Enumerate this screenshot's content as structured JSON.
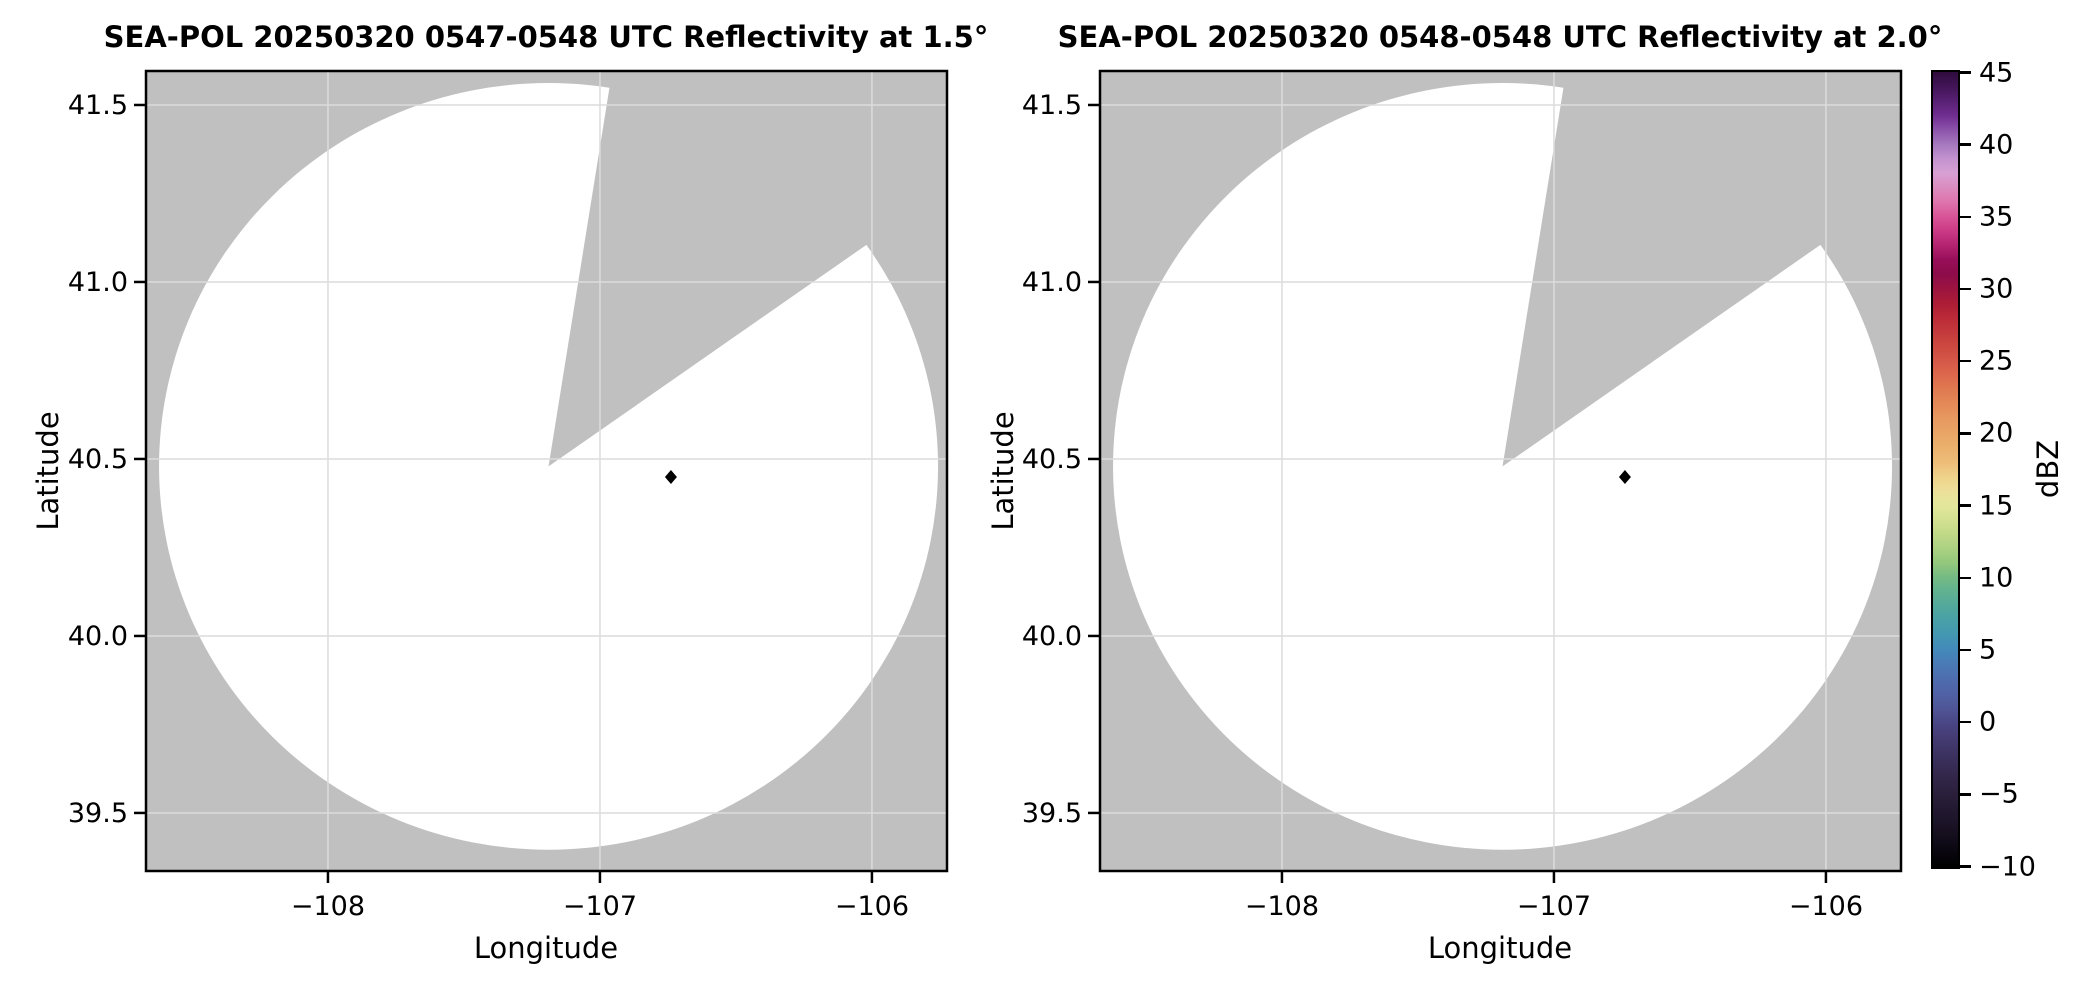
{
  "figure": {
    "background": "#ffffff",
    "kind": "dual-panel radar PPI reflectivity figure"
  },
  "chart_data": {
    "type": "heatmap",
    "plots": [
      {
        "title": "SEA-POL 20250320 0547-0548 UTC Reflectivity at 1.5°",
        "xlabel": "Longitude",
        "ylabel": "Latitude",
        "xlim": [
          -108.669,
          -105.724
        ],
        "ylim": [
          39.336,
          41.596
        ],
        "xticks": [
          -108,
          -107,
          -106
        ],
        "xtick_labels": [
          "−108",
          "−107",
          "−106"
        ],
        "yticks": [
          41.5,
          41.0,
          40.5,
          40.0,
          39.5
        ],
        "ytick_labels": [
          "41.5",
          "41.0",
          "40.5",
          "40.0",
          "39.5"
        ],
        "grid": true,
        "radar": {
          "center_lon": -107.189,
          "center_lat": 40.479,
          "radius_lon_deg": 1.432,
          "radius_lat_deg": 1.083,
          "missing_sector_azimuth_deg": [
            9.0,
            54.7
          ]
        },
        "marker": {
          "lon": -106.739,
          "lat": 40.449,
          "shape": "diamond",
          "color": "#000000"
        },
        "colors": {
          "no_data": "#c0c0c0",
          "scanned_clear": "#ffffff",
          "grid": "#dcdcdc",
          "frame": "#000000"
        }
      },
      {
        "title": "SEA-POL 20250320 0548-0548 UTC Reflectivity at 2.0°",
        "xlabel": "Longitude",
        "ylabel": "Latitude",
        "xlim": [
          -108.669,
          -105.724
        ],
        "ylim": [
          39.336,
          41.596
        ],
        "xticks": [
          -108,
          -107,
          -106
        ],
        "xtick_labels": [
          "−108",
          "−107",
          "−106"
        ],
        "yticks": [
          41.5,
          41.0,
          40.5,
          40.0,
          39.5
        ],
        "ytick_labels": [
          "41.5",
          "41.0",
          "40.5",
          "40.0",
          "39.5"
        ],
        "grid": true,
        "radar": {
          "center_lon": -107.189,
          "center_lat": 40.479,
          "radius_lon_deg": 1.432,
          "radius_lat_deg": 1.083,
          "missing_sector_azimuth_deg": [
            9.0,
            54.7
          ]
        },
        "marker": {
          "lon": -106.739,
          "lat": 40.449,
          "shape": "diamond",
          "color": "#000000"
        },
        "colors": {
          "no_data": "#c0c0c0",
          "scanned_clear": "#ffffff",
          "grid": "#dcdcdc",
          "frame": "#000000"
        }
      }
    ],
    "colorbar": {
      "label": "dBZ",
      "vmin": -10,
      "vmax": 45,
      "tick_values": [
        45,
        40,
        35,
        30,
        25,
        20,
        15,
        10,
        5,
        0,
        -5,
        -10
      ],
      "tick_labels": [
        "45",
        "40",
        "35",
        "30",
        "25",
        "20",
        "15",
        "10",
        "5",
        "0",
        "−5",
        "−10"
      ],
      "stops": [
        {
          "v": 45,
          "c": "#2e0b3d"
        },
        {
          "v": 43.5,
          "c": "#4c1a64"
        },
        {
          "v": 42,
          "c": "#6f2d90"
        },
        {
          "v": 41,
          "c": "#8c53ab"
        },
        {
          "v": 40,
          "c": "#a578be"
        },
        {
          "v": 39,
          "c": "#c393cf"
        },
        {
          "v": 38,
          "c": "#d7a0d4"
        },
        {
          "v": 37,
          "c": "#db8cbf"
        },
        {
          "v": 36,
          "c": "#de74ad"
        },
        {
          "v": 35,
          "c": "#d85497"
        },
        {
          "v": 34,
          "c": "#cb3a85"
        },
        {
          "v": 33,
          "c": "#b42370"
        },
        {
          "v": 32,
          "c": "#970e59"
        },
        {
          "v": 31,
          "c": "#8d0c49"
        },
        {
          "v": 30,
          "c": "#9c1340"
        },
        {
          "v": 29,
          "c": "#ac1d36"
        },
        {
          "v": 28,
          "c": "#ba2a37"
        },
        {
          "v": 27,
          "c": "#c43a3c"
        },
        {
          "v": 26,
          "c": "#cc4940"
        },
        {
          "v": 25,
          "c": "#d55848"
        },
        {
          "v": 24,
          "c": "#dd684c"
        },
        {
          "v": 23,
          "c": "#e07a51"
        },
        {
          "v": 22,
          "c": "#e48a58"
        },
        {
          "v": 21,
          "c": "#e79960"
        },
        {
          "v": 20,
          "c": "#e9a566"
        },
        {
          "v": 19,
          "c": "#ebb16d"
        },
        {
          "v": 18,
          "c": "#edbd78"
        },
        {
          "v": 17,
          "c": "#efd28a"
        },
        {
          "v": 16,
          "c": "#ede09a"
        },
        {
          "v": 15,
          "c": "#e3e79c"
        },
        {
          "v": 14,
          "c": "#d3e191"
        },
        {
          "v": 13,
          "c": "#c0d988"
        },
        {
          "v": 12,
          "c": "#aad181"
        },
        {
          "v": 11,
          "c": "#92c77c"
        },
        {
          "v": 10,
          "c": "#73ba85"
        },
        {
          "v": 9,
          "c": "#60b191"
        },
        {
          "v": 8,
          "c": "#52a89c"
        },
        {
          "v": 7,
          "c": "#48a0a8"
        },
        {
          "v": 6,
          "c": "#4397b2"
        },
        {
          "v": 5,
          "c": "#4389ba"
        },
        {
          "v": 4,
          "c": "#4a7ab6"
        },
        {
          "v": 3,
          "c": "#4e6dae"
        },
        {
          "v": 2,
          "c": "#5062a5"
        },
        {
          "v": 1,
          "c": "#4f5697"
        },
        {
          "v": 0,
          "c": "#4a4786"
        },
        {
          "v": -1,
          "c": "#443c74"
        },
        {
          "v": -2,
          "c": "#3e3464"
        },
        {
          "v": -3,
          "c": "#372c55"
        },
        {
          "v": -4,
          "c": "#312546"
        },
        {
          "v": -5,
          "c": "#2a1f3a"
        },
        {
          "v": -6,
          "c": "#221931"
        },
        {
          "v": -7,
          "c": "#1b1326"
        },
        {
          "v": -8,
          "c": "#130d1b"
        },
        {
          "v": -9,
          "c": "#09060e"
        },
        {
          "v": -10,
          "c": "#000000"
        }
      ]
    }
  }
}
